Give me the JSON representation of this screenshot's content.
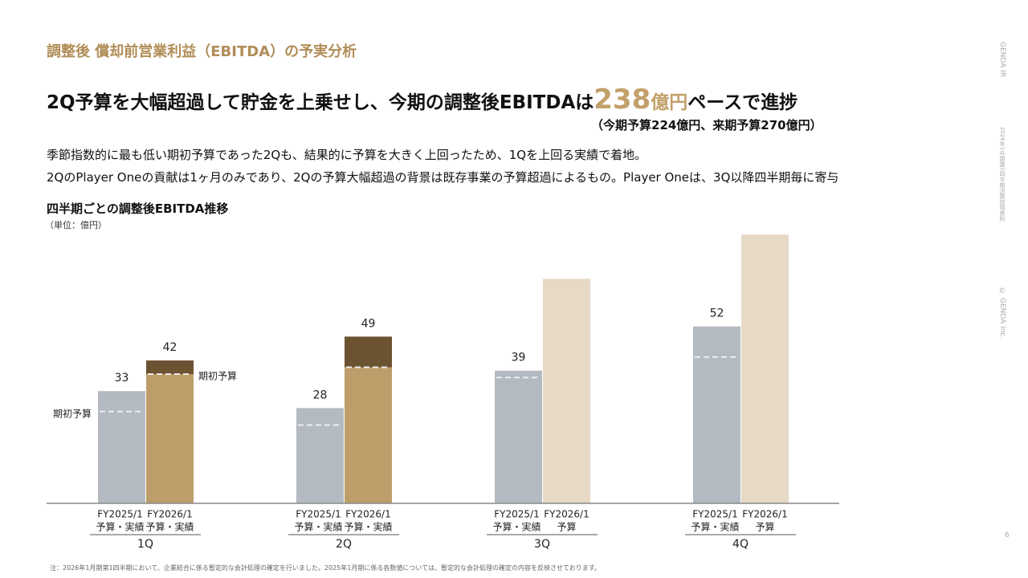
{
  "header": {
    "section": "調整後 償却前営業利益（EBITDA）の予実分析",
    "headline": [
      "2Q予算を大幅超過して貯金を上乗せし、今期の調整後EBITDAは",
      "238",
      "億円",
      "ペースで進捗"
    ],
    "subline": "（今期予算224億円、来期予算270億円）"
  },
  "body": [
    "季節指数的に最も低い期初予算であった2Qも、結果的に予算を大きく上回ったため、1Qを上回る実績で着地。",
    "2QのPlayer Oneの貢献は1ヶ月のみであり、2Qの予算大幅超過の背景は既存事業の予算超過によるもの。Player Oneは、3Q以降四半期毎に寄与"
  ],
  "side": [
    "GENDA IR",
    "2026年1月期第2四半期決算説明資料",
    "© GENDA Inc."
  ],
  "page": "6",
  "footnote": "注：2026年1月期第1四半期において、企業結合に係る暫定的な会計処理の確定を行いました。2025年1月期に係る各数値については、暫定的な会計処理の確定の内容を反映させております。",
  "chart_data": {
    "type": "bar",
    "title": "四半期ごとの調整後EBITDA推移",
    "unit": "（単位：億円）",
    "categories": [
      "1Q",
      "2Q",
      "3Q",
      "4Q"
    ],
    "bar_labels": [
      [
        [
          "FY2025/1",
          "予算・実績"
        ],
        [
          "FY2026/1",
          "予算・実績"
        ]
      ],
      [
        [
          "FY2025/1",
          "予算・実績"
        ],
        [
          "FY2026/1",
          "予算・実績"
        ]
      ],
      [
        [
          "FY2025/1",
          "予算・実績"
        ],
        [
          "FY2026/1",
          "予算"
        ]
      ],
      [
        [
          "FY2025/1",
          "予算・実績"
        ],
        [
          "FY2026/1",
          "予算"
        ]
      ]
    ],
    "series": [
      {
        "name": "FY2025/1",
        "color": "#b4bac2",
        "values": [
          33,
          28,
          39,
          52
        ],
        "budget": [
          27,
          23,
          37,
          43
        ]
      },
      {
        "name": "FY2026/1",
        "colors": [
          "#bd9e6a",
          "#bd9e6a",
          "#e6d9c6",
          "#e6d9c6"
        ],
        "excess_color": "#6b5231",
        "values": [
          42,
          49,
          66,
          79
        ],
        "value_labels": [
          "42",
          "49",
          null,
          null
        ],
        "budget": [
          38,
          40,
          null,
          null
        ]
      }
    ],
    "annotations": [
      "期初予算",
      "期初予算"
    ],
    "ylim": [
      0,
      80
    ]
  }
}
